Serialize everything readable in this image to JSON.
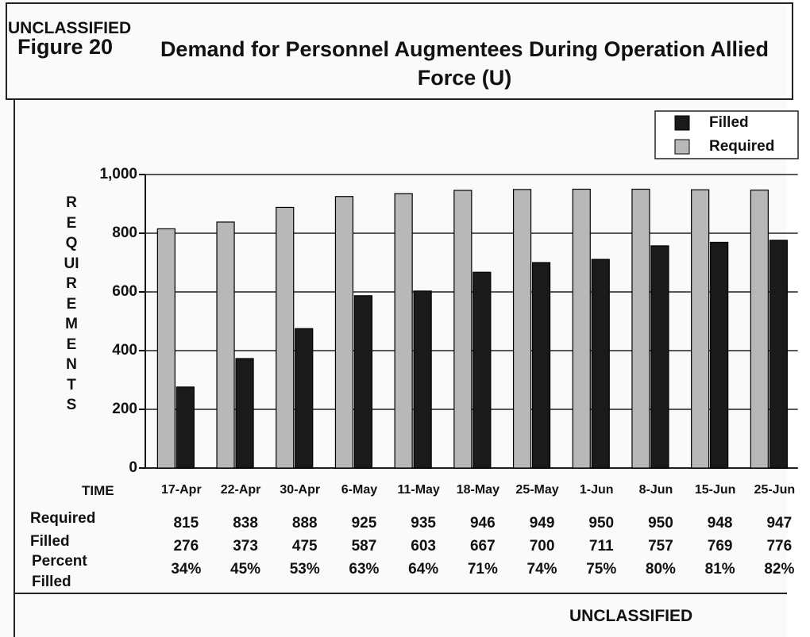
{
  "chart_data": {
    "type": "bar",
    "classification_top": "UNCLASSIFIED",
    "figure_number": "Figure 20",
    "title": "Demand for Personnel Augmentees During Operation Allied Force (U)",
    "y_axis_label": "REQUIREMENTS",
    "x_axis_label": "TIME",
    "categories": [
      "17-Apr",
      "22-Apr",
      "30-Apr",
      "6-May",
      "11-May",
      "18-May",
      "25-May",
      "1-Jun",
      "8-Jun",
      "15-Jun",
      "25-Jun"
    ],
    "series": [
      {
        "name": "Required",
        "row_label": "Required",
        "color": "#b8b8b8",
        "values": [
          815,
          838,
          888,
          925,
          935,
          946,
          949,
          950,
          950,
          948,
          947
        ]
      },
      {
        "name": "Filled",
        "row_label": "Filled",
        "color": "#1a1a1a",
        "values": [
          276,
          373,
          475,
          587,
          603,
          667,
          700,
          711,
          757,
          769,
          776
        ]
      }
    ],
    "percent_filled": {
      "row_label": "Percent Filled",
      "values": [
        "34%",
        "45%",
        "53%",
        "63%",
        "64%",
        "71%",
        "74%",
        "75%",
        "80%",
        "81%",
        "82%"
      ]
    },
    "legend": {
      "position": "top right",
      "order": [
        1,
        0
      ]
    },
    "ylim": [
      0,
      1000
    ],
    "yticks": [
      0,
      200,
      400,
      600,
      800,
      {
        "value": 1000,
        "label": "1,000"
      }
    ],
    "grid": true,
    "classification_bottom": "UNCLASSIFIED"
  }
}
